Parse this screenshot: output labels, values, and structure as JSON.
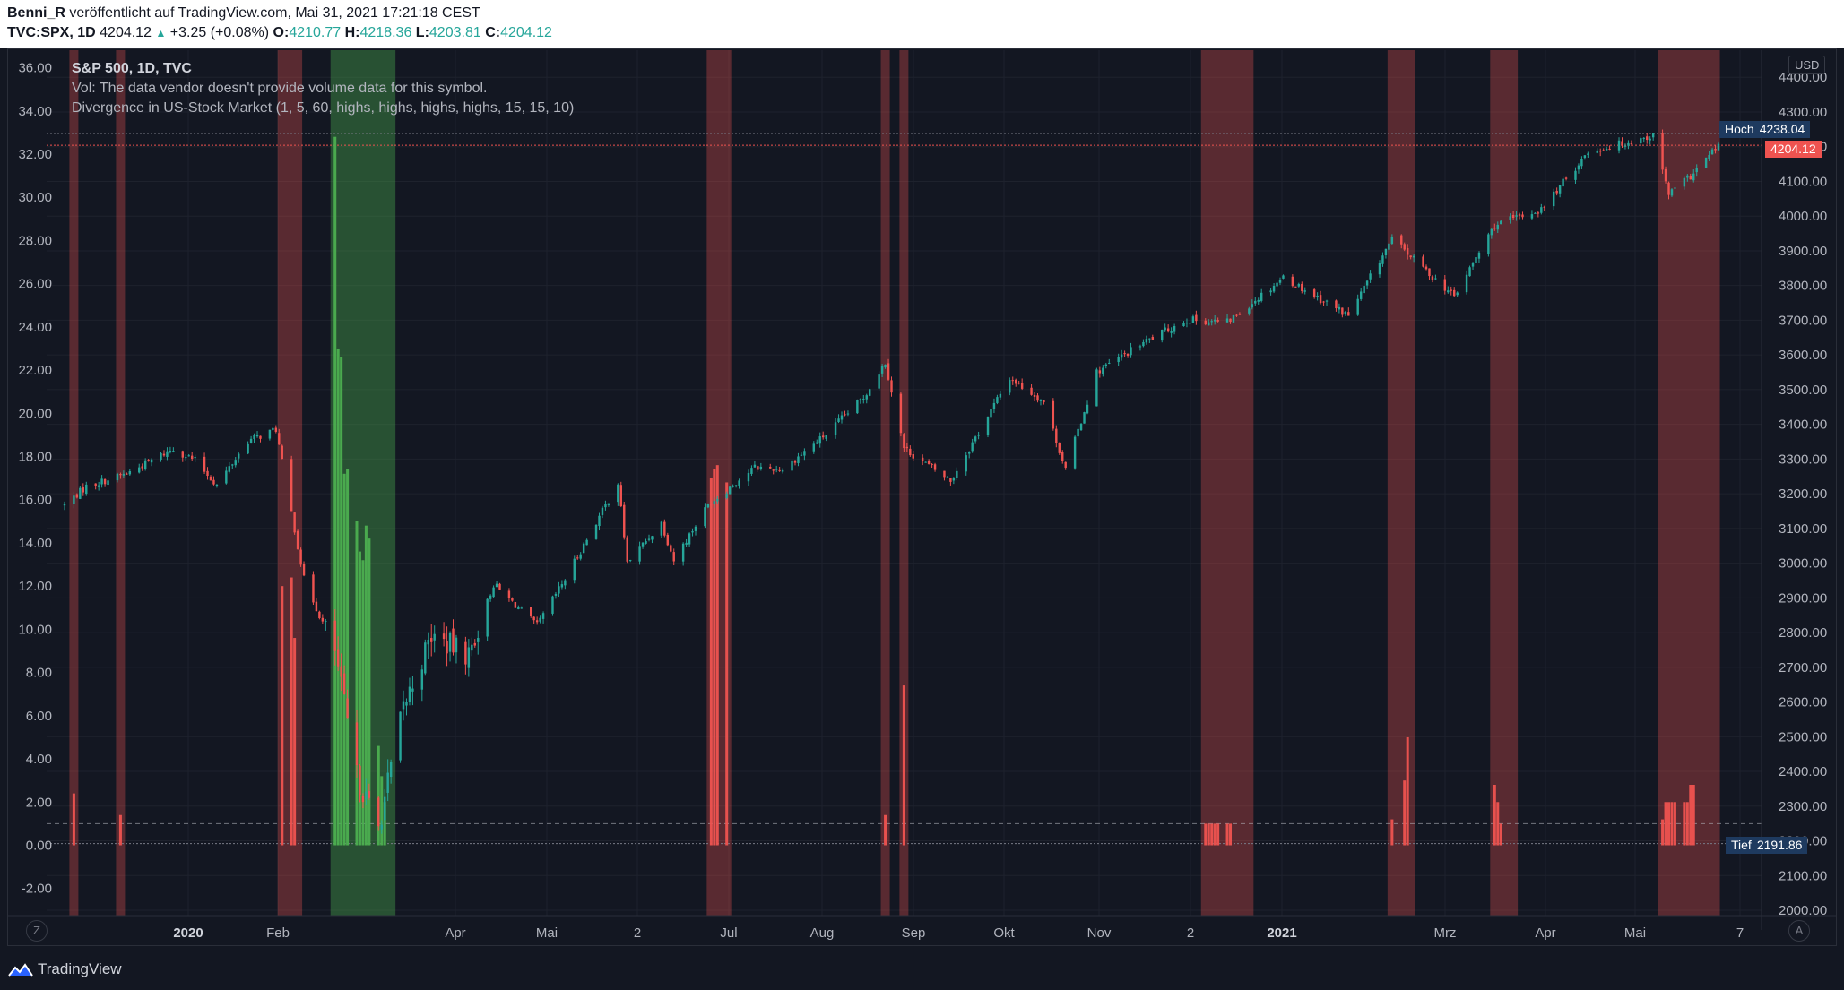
{
  "header": {
    "author": "Benni_R",
    "published": "veröffentlicht auf TradingView.com, Mai 31, 2021 17:21:18 CEST",
    "symbol": "TVC:SPX, 1D",
    "last": "4204.12",
    "change": "+3.25 (+0.08%)",
    "o_label": "O:",
    "o_value": "4210.77",
    "h_label": "H:",
    "h_value": "4218.36",
    "l_label": "L:",
    "l_value": "4203.81",
    "c_label": "C:",
    "c_value": "4204.12"
  },
  "legend": {
    "title": "S&P 500, 1D, TVC",
    "vol": "Vol: The data vendor doesn't provide volume data for this symbol.",
    "indicator": "Divergence in US-Stock Market (1, 5, 60, highs, highs, highs, highs, 15, 15, 10)"
  },
  "currency": "USD",
  "tags": {
    "high_label": "Hoch",
    "high_value": "4238.04",
    "last_value": "4204.12",
    "low_label": "Tief",
    "low_value": "2191.86"
  },
  "buttons": {
    "zoom": "Z",
    "auto": "A"
  },
  "footer": {
    "brand": "TradingView"
  },
  "colors": {
    "up": "#26a69a",
    "down": "#ef5350",
    "red_zone": "#ef5350",
    "green_zone": "#4caf50",
    "background": "#131722"
  },
  "chart_data": {
    "type": "candlestick",
    "title": "S&P 500, 1D, TVC",
    "price_axis": {
      "ticks": [
        2000,
        2100,
        2200,
        2300,
        2400,
        2500,
        2600,
        2700,
        2800,
        2900,
        3000,
        3100,
        3200,
        3300,
        3400,
        3500,
        3600,
        3700,
        3800,
        3900,
        4000,
        4100,
        4200,
        4300,
        4400
      ],
      "ylim": [
        2000,
        4450
      ]
    },
    "indicator_axis": {
      "ticks": [
        -2,
        0,
        2,
        4,
        6,
        8,
        10,
        12,
        14,
        16,
        18,
        20,
        22,
        24,
        26,
        28,
        30,
        32,
        34,
        36
      ],
      "ylim": [
        -3,
        36.5
      ],
      "threshold": 1
    },
    "time_axis": {
      "labels": [
        "2020",
        "Feb",
        "Apr",
        "Mai",
        "2",
        "Jul",
        "Aug",
        "Sep",
        "Okt",
        "Nov",
        "2",
        "2021",
        "Mrz",
        "Apr",
        "Mai",
        "7"
      ],
      "bold": [
        "2020",
        "2021"
      ]
    },
    "price_path": {
      "dates": [
        "2019-12-13",
        "2019-12-20",
        "2020-01-02",
        "2020-01-17",
        "2020-01-24",
        "2020-01-31",
        "2020-02-10",
        "2020-02-19",
        "2020-02-28",
        "2020-03-09",
        "2020-03-16",
        "2020-03-23",
        "2020-03-31",
        "2020-04-09",
        "2020-04-21",
        "2020-04-29",
        "2020-05-13",
        "2020-05-22",
        "2020-06-08",
        "2020-06-11",
        "2020-06-22",
        "2020-06-26",
        "2020-07-07",
        "2020-07-22",
        "2020-07-31",
        "2020-08-14",
        "2020-08-26",
        "2020-09-02",
        "2020-09-08",
        "2020-09-23",
        "2020-10-12",
        "2020-10-23",
        "2020-10-30",
        "2020-11-09",
        "2020-11-24",
        "2020-12-08",
        "2020-12-21",
        "2021-01-08",
        "2021-01-29",
        "2021-02-12",
        "2021-03-04",
        "2021-03-17",
        "2021-04-01",
        "2021-04-16",
        "2021-05-07",
        "2021-05-12",
        "2021-05-19",
        "2021-05-28"
      ],
      "closes": [
        3168,
        3221,
        3258,
        3330,
        3296,
        3225,
        3352,
        3386,
        2954,
        2746,
        2386,
        2237,
        2585,
        2790,
        2736,
        2939,
        2820,
        2955,
        3232,
        3002,
        3117,
        3009,
        3169,
        3276,
        3271,
        3372,
        3478,
        3580,
        3331,
        3237,
        3534,
        3465,
        3270,
        3550,
        3635,
        3702,
        3694,
        3824,
        3714,
        3934,
        3768,
        3974,
        4019,
        4185,
        4232,
        4063,
        4115,
        4204
      ]
    },
    "signal_zones": [
      {
        "color": "red",
        "start": "2019-12-16",
        "end": "2019-12-16"
      },
      {
        "color": "red",
        "start": "2019-12-31",
        "end": "2019-12-31"
      },
      {
        "color": "red",
        "start": "2020-02-21",
        "end": "2020-02-26"
      },
      {
        "color": "green",
        "start": "2020-03-09",
        "end": "2020-03-27"
      },
      {
        "color": "red",
        "start": "2020-07-08",
        "end": "2020-07-13"
      },
      {
        "color": "red",
        "start": "2020-09-02",
        "end": "2020-09-02"
      },
      {
        "color": "red",
        "start": "2020-09-08",
        "end": "2020-09-08"
      },
      {
        "color": "red",
        "start": "2020-12-14",
        "end": "2020-12-28"
      },
      {
        "color": "red",
        "start": "2021-02-12",
        "end": "2021-02-18"
      },
      {
        "color": "red",
        "start": "2021-03-17",
        "end": "2021-03-23"
      },
      {
        "color": "red",
        "start": "2021-05-10",
        "end": "2021-05-27"
      }
    ],
    "indicator_bars": [
      {
        "date": "2019-12-16",
        "color": "red",
        "value": 2.4
      },
      {
        "date": "2019-12-31",
        "color": "red",
        "value": 1.4
      },
      {
        "date": "2020-02-21",
        "color": "red",
        "value": 12.0
      },
      {
        "date": "2020-02-24",
        "color": "red",
        "value": 12.4
      },
      {
        "date": "2020-02-25",
        "color": "red",
        "value": 9.6
      },
      {
        "date": "2020-03-09",
        "color": "green",
        "value": 32.8
      },
      {
        "date": "2020-03-10",
        "color": "green",
        "value": 23.0
      },
      {
        "date": "2020-03-11",
        "color": "green",
        "value": 22.6
      },
      {
        "date": "2020-03-12",
        "color": "green",
        "value": 17.2
      },
      {
        "date": "2020-03-13",
        "color": "green",
        "value": 17.4
      },
      {
        "date": "2020-03-16",
        "color": "green",
        "value": 15.0
      },
      {
        "date": "2020-03-17",
        "color": "green",
        "value": 13.6
      },
      {
        "date": "2020-03-18",
        "color": "green",
        "value": 13.2
      },
      {
        "date": "2020-03-19",
        "color": "green",
        "value": 14.8
      },
      {
        "date": "2020-03-20",
        "color": "green",
        "value": 14.2
      },
      {
        "date": "2020-03-23",
        "color": "green",
        "value": 4.6
      },
      {
        "date": "2020-03-24",
        "color": "green",
        "value": 3.2
      },
      {
        "date": "2020-03-25",
        "color": "green",
        "value": 2.0
      },
      {
        "date": "2020-07-08",
        "color": "red",
        "value": 17.0
      },
      {
        "date": "2020-07-09",
        "color": "red",
        "value": 17.4
      },
      {
        "date": "2020-07-10",
        "color": "red",
        "value": 17.6
      },
      {
        "date": "2020-07-13",
        "color": "red",
        "value": 16.8
      },
      {
        "date": "2020-09-02",
        "color": "red",
        "value": 1.4
      },
      {
        "date": "2020-09-08",
        "color": "red",
        "value": 7.4
      },
      {
        "date": "2020-12-14",
        "color": "red",
        "value": 1.0
      },
      {
        "date": "2020-12-15",
        "color": "red",
        "value": 1.0
      },
      {
        "date": "2020-12-16",
        "color": "red",
        "value": 1.0
      },
      {
        "date": "2020-12-17",
        "color": "red",
        "value": 1.0
      },
      {
        "date": "2020-12-18",
        "color": "red",
        "value": 1.0
      },
      {
        "date": "2020-12-21",
        "color": "red",
        "value": 1.0
      },
      {
        "date": "2020-12-22",
        "color": "red",
        "value": 1.0
      },
      {
        "date": "2021-02-12",
        "color": "red",
        "value": 1.2
      },
      {
        "date": "2021-02-16",
        "color": "red",
        "value": 3.0
      },
      {
        "date": "2021-02-17",
        "color": "red",
        "value": 5.0
      },
      {
        "date": "2021-03-17",
        "color": "red",
        "value": 2.8
      },
      {
        "date": "2021-03-18",
        "color": "red",
        "value": 2.0
      },
      {
        "date": "2021-03-19",
        "color": "red",
        "value": 1.0
      },
      {
        "date": "2021-05-10",
        "color": "red",
        "value": 1.2
      },
      {
        "date": "2021-05-11",
        "color": "red",
        "value": 2.0
      },
      {
        "date": "2021-05-12",
        "color": "red",
        "value": 2.0
      },
      {
        "date": "2021-05-13",
        "color": "red",
        "value": 2.0
      },
      {
        "date": "2021-05-14",
        "color": "red",
        "value": 2.0
      },
      {
        "date": "2021-05-17",
        "color": "red",
        "value": 2.0
      },
      {
        "date": "2021-05-18",
        "color": "red",
        "value": 2.0
      },
      {
        "date": "2021-05-19",
        "color": "red",
        "value": 2.8
      },
      {
        "date": "2021-05-20",
        "color": "red",
        "value": 2.8
      }
    ],
    "high_price": 4238.04,
    "last_price": 4204.12,
    "low_price": 2191.86
  }
}
